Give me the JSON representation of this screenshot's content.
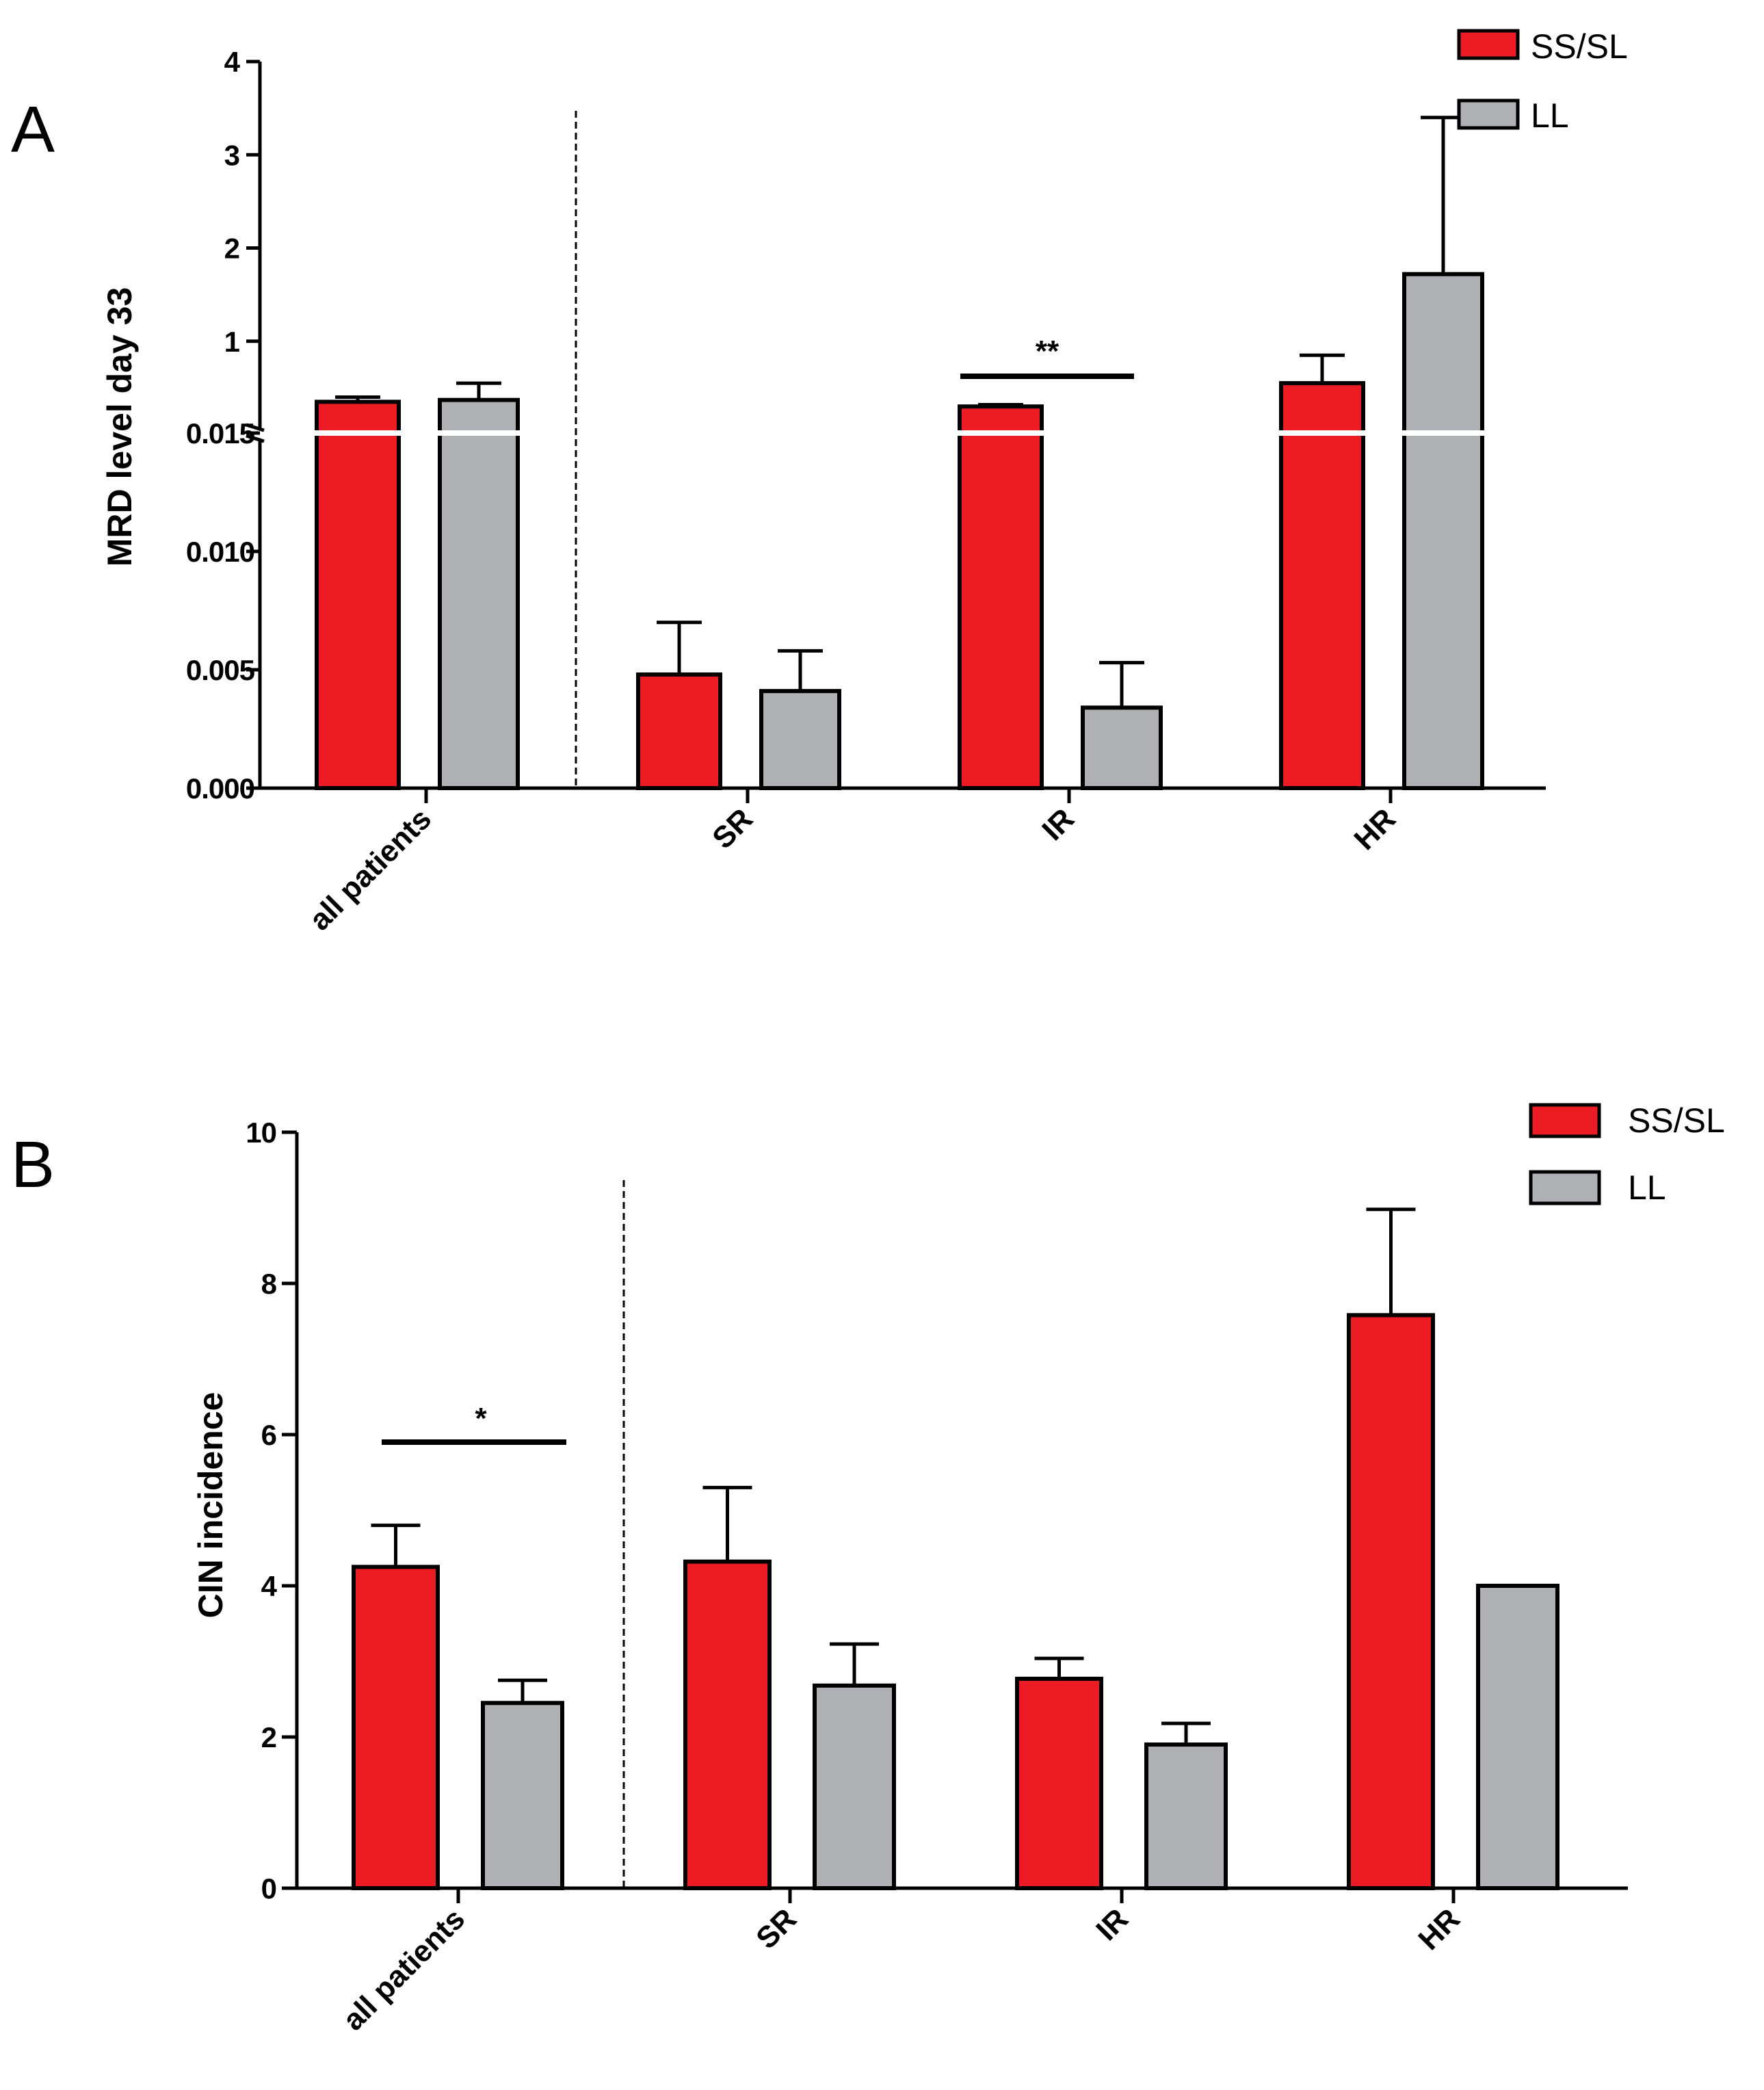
{
  "colors": {
    "ss_sl": "#ed1c24",
    "ll": "#aeb0b3",
    "axis": "#000000",
    "break_line": "#ffffff"
  },
  "chart_data": [
    {
      "panel_label": "A",
      "type": "bar",
      "title": "",
      "ylabel": "MRD level day 33",
      "xlabel": "",
      "categories": [
        "all patients",
        "SR",
        "IR",
        "HR"
      ],
      "series": [
        {
          "name": "SS/SL",
          "values": [
            0.35,
            0.0048,
            0.3,
            0.55
          ],
          "errors": [
            0.05,
            0.0022,
            0.02,
            0.3
          ]
        },
        {
          "name": "LL",
          "values": [
            0.37,
            0.0041,
            0.0034,
            1.72
          ],
          "errors": [
            0.18,
            0.0017,
            0.0019,
            1.68
          ]
        }
      ],
      "y_axis_break": {
        "lower_range": [
          0,
          0.015
        ],
        "upper_range": [
          0.015,
          4
        ]
      },
      "yticks_lower": [
        "0.000",
        "0.005",
        "0.010",
        "0.015"
      ],
      "yticks_upper": [
        "1",
        "2",
        "3",
        "4"
      ],
      "significance": [
        {
          "category": "IR",
          "label": "**"
        }
      ],
      "separator_after": "all patients",
      "legend": [
        "SS/SL",
        "LL"
      ],
      "legend_position": "top-right"
    },
    {
      "panel_label": "B",
      "type": "bar",
      "title": "",
      "ylabel": "CIN incidence",
      "xlabel": "",
      "categories": [
        "all patients",
        "SR",
        "IR",
        "HR"
      ],
      "series": [
        {
          "name": "SS/SL",
          "values": [
            4.25,
            4.32,
            2.77,
            7.58
          ],
          "errors": [
            0.55,
            0.98,
            0.27,
            1.4
          ]
        },
        {
          "name": "LL",
          "values": [
            2.45,
            2.68,
            1.9,
            4.0
          ],
          "errors": [
            0.3,
            0.55,
            0.28,
            null
          ]
        }
      ],
      "ylim": [
        0,
        10
      ],
      "yticks": [
        "0",
        "2",
        "4",
        "6",
        "8",
        "10"
      ],
      "significance": [
        {
          "category": "all patients",
          "label": "*"
        }
      ],
      "separator_after": "all patients",
      "legend": [
        "SS/SL",
        "LL"
      ],
      "legend_position": "top-right"
    }
  ]
}
